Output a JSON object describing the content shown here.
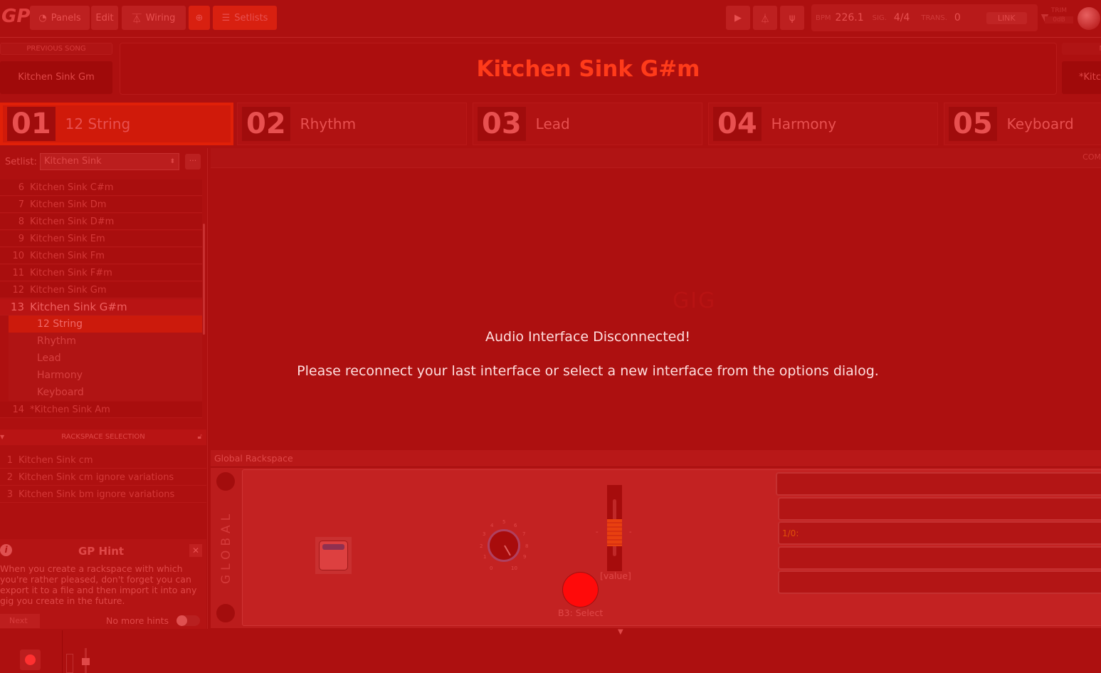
{
  "toolbar": {
    "panels": "Panels",
    "edit": "Edit",
    "wiring": "Wiring",
    "setlists": "Setlists",
    "bpm_label": "BPM",
    "bpm": "226.1",
    "sig_label": "SIG.",
    "sig": "4/4",
    "trans_label": "TRANS.",
    "trans": "0",
    "link": "LINK",
    "trim_label": "TRIM",
    "trim": "0dB"
  },
  "header": {
    "previous_label": "PREVIOUS SONG",
    "previous_song": "Kitchen Sink Gm",
    "current_song": "Kitchen Sink G#m",
    "next_label": "N",
    "next_song": "*Kitc"
  },
  "parts": [
    {
      "num": "01",
      "name": "12 String"
    },
    {
      "num": "02",
      "name": "Rhythm"
    },
    {
      "num": "03",
      "name": "Lead"
    },
    {
      "num": "04",
      "name": "Harmony"
    },
    {
      "num": "05",
      "name": "Keyboard"
    }
  ],
  "setlist": {
    "label": "Setlist:",
    "value": "Kitchen Sink",
    "more": "···",
    "songs": [
      {
        "n": "6",
        "name": "Kitchen Sink C#m"
      },
      {
        "n": "7",
        "name": "Kitchen Sink  Dm"
      },
      {
        "n": "8",
        "name": "Kitchen Sink D#m"
      },
      {
        "n": "9",
        "name": "Kitchen Sink Em"
      },
      {
        "n": "10",
        "name": "Kitchen Sink Fm"
      },
      {
        "n": "11",
        "name": "Kitchen Sink F#m"
      },
      {
        "n": "12",
        "name": "Kitchen Sink Gm"
      }
    ],
    "current": {
      "n": "13",
      "name": "Kitchen Sink G#m",
      "parts": [
        "12 String",
        "Rhythm",
        "Lead",
        "Harmony",
        "Keyboard"
      ]
    },
    "after": {
      "n": "14",
      "name": "*Kitchen Sink Am"
    }
  },
  "rackspace_selection": {
    "title": "RACKSPACE SELECTION",
    "items": [
      {
        "n": "1",
        "name": "Kitchen Sink cm"
      },
      {
        "n": "2",
        "name": "Kitchen Sink cm ignore variations"
      },
      {
        "n": "3",
        "name": "Kitchen Sink bm ignore variations"
      }
    ]
  },
  "hint": {
    "title": "GP Hint",
    "body": "When you create a rackspace with which you're rather pleased, don't forget you can export it to a file and then import it into any gig you create in the future.",
    "next": "Next",
    "no_more": "No more hints"
  },
  "main": {
    "com_label": "COM",
    "watermark": "GIG",
    "message_title": "Audio Interface Disconnected!",
    "message_body": "Please reconnect your last interface or select a new interface from the options dialog."
  },
  "global": {
    "title": "Global Rackspace",
    "side_label": "GLOBAL",
    "knob_ticks": [
      "0",
      "1",
      "2",
      "3",
      "4",
      "5",
      "6",
      "7",
      "8",
      "9",
      "10"
    ],
    "slider_value": "[value]",
    "button_label": "B3: Select",
    "field_text": "1/0:"
  }
}
